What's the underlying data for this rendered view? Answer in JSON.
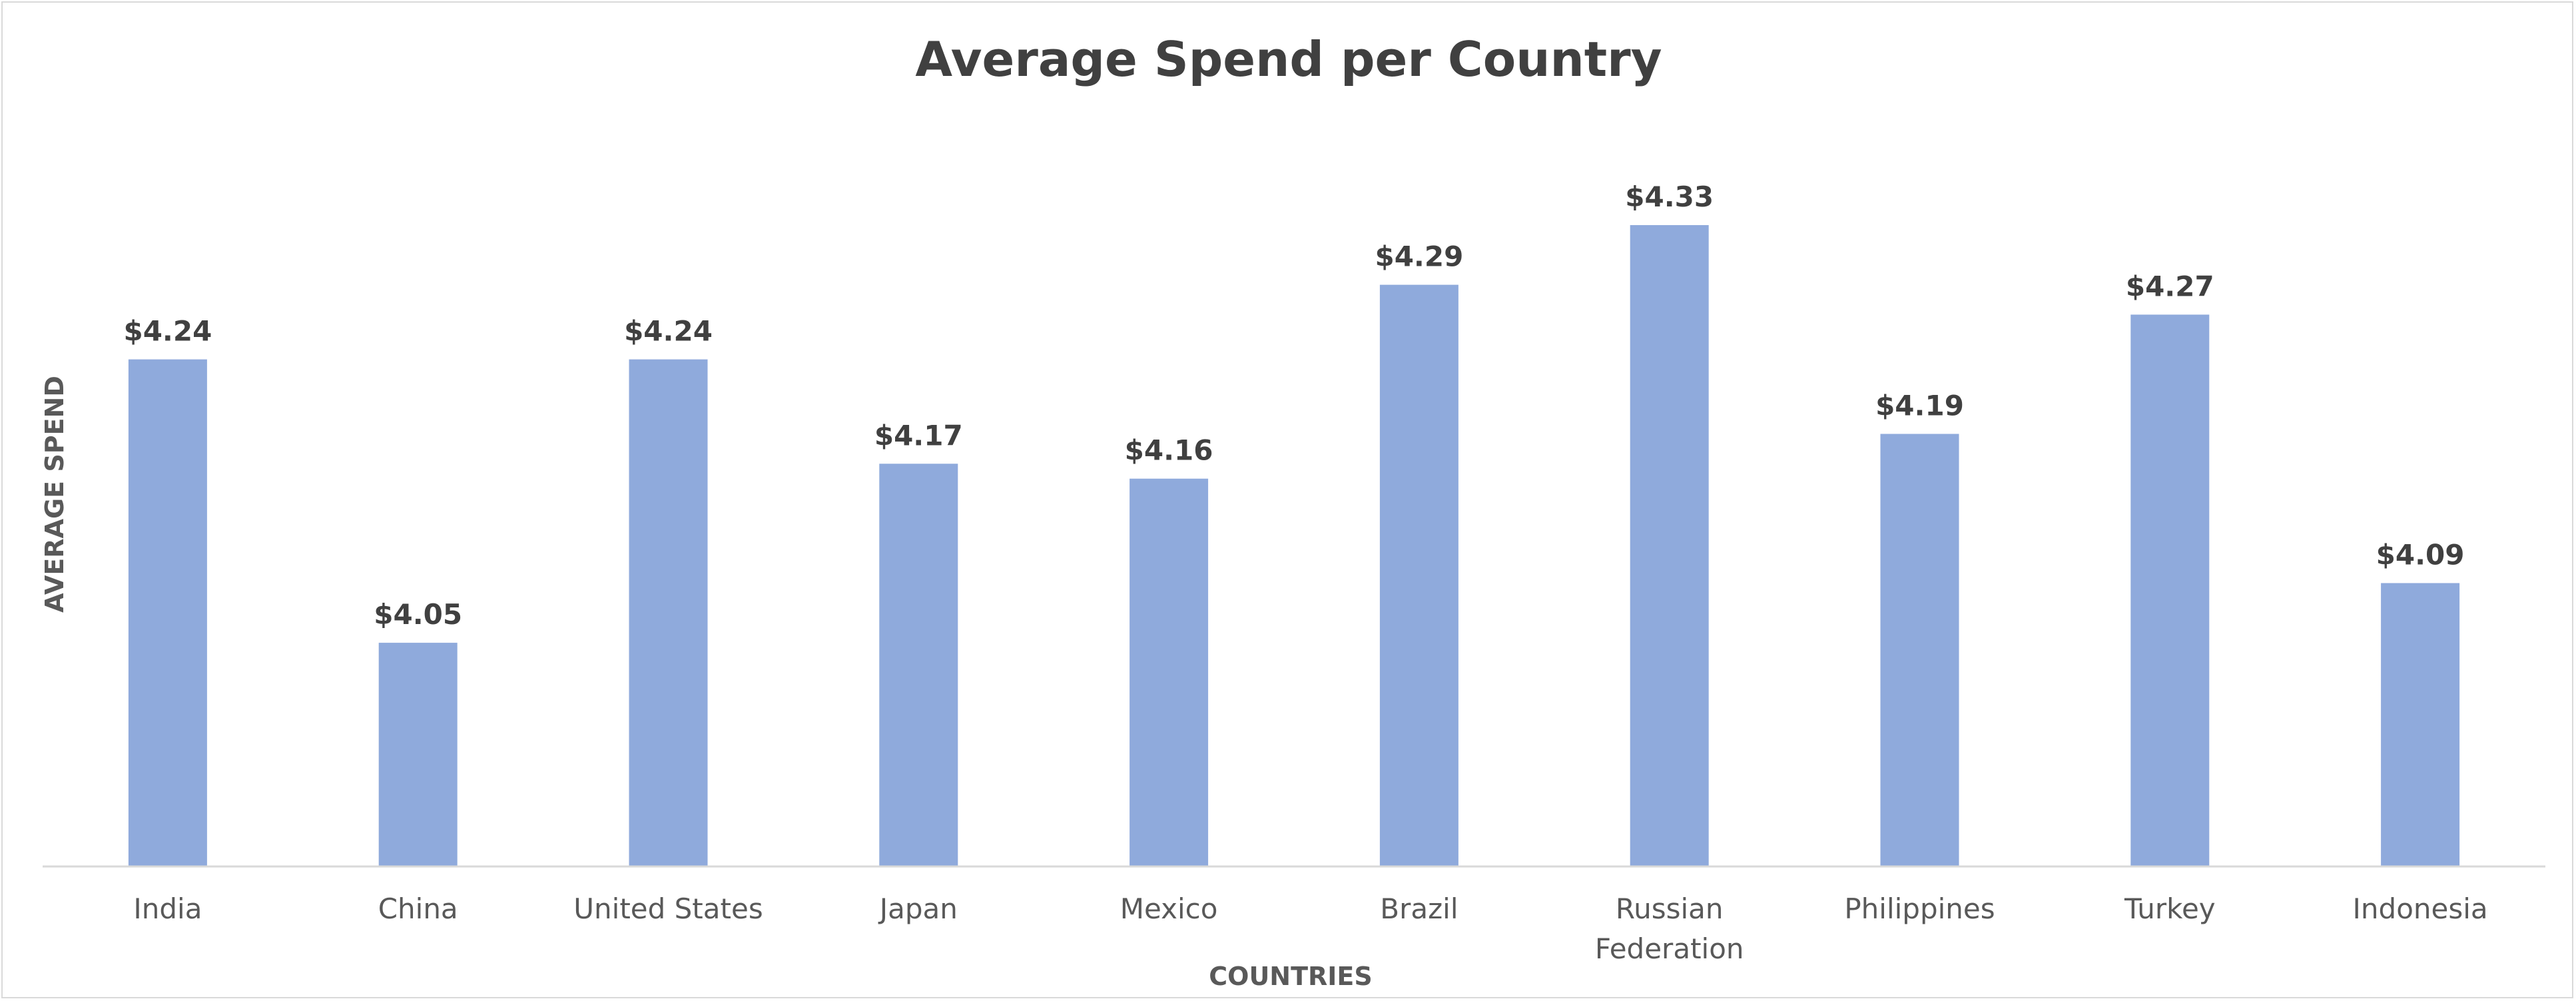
{
  "chart_data": {
    "type": "bar",
    "title": "Average Spend per Country",
    "xlabel": "COUNTRIES",
    "ylabel": "AVERAGE SPEND",
    "categories": [
      "India",
      "China",
      "United States",
      "Japan",
      "Mexico",
      "Brazil",
      "Russian Federation",
      "Philippines",
      "Turkey",
      "Indonesia"
    ],
    "category_lines": [
      [
        "India"
      ],
      [
        "China"
      ],
      [
        "United States"
      ],
      [
        "Japan"
      ],
      [
        "Mexico"
      ],
      [
        "Brazil"
      ],
      [
        "Russian",
        "Federation"
      ],
      [
        "Philippines"
      ],
      [
        "Turkey"
      ],
      [
        "Indonesia"
      ]
    ],
    "values": [
      4.24,
      4.05,
      4.24,
      4.17,
      4.16,
      4.29,
      4.33,
      4.19,
      4.27,
      4.09
    ],
    "data_labels": [
      "$4.24",
      "$4.05",
      "$4.24",
      "$4.17",
      "$4.16",
      "$4.29",
      "$4.33",
      "$4.19",
      "$4.27",
      "$4.09"
    ],
    "ylim": [
      3.9,
      4.35
    ],
    "grid": false,
    "legend": "none",
    "bar_color": "#8faadc"
  }
}
